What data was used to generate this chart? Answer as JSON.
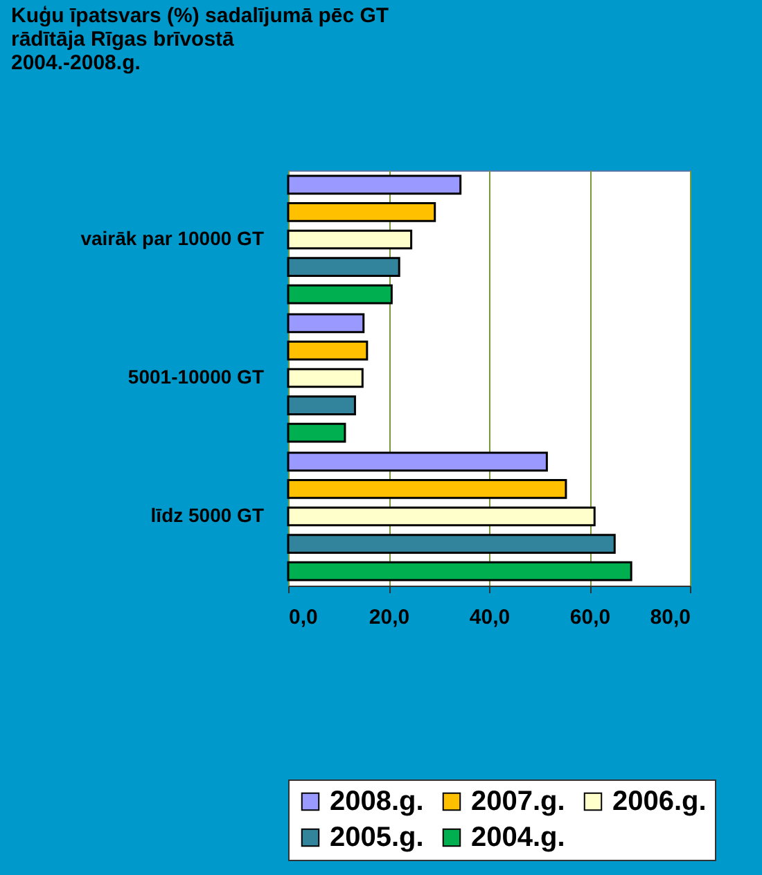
{
  "chart_data": {
    "type": "bar",
    "orientation": "horizontal",
    "title": "Kuģu īpatsvars (%) sadalījumā pēc GT\nrādītāja Rīgas brīvostā\n2004.-2008.g.",
    "categories": [
      "vairāk par 10000 GT",
      "5001-10000 GT",
      "līdz 5000 GT"
    ],
    "series": [
      {
        "name": "2008.g.",
        "color": "#9999ff",
        "values": [
          34.3,
          15.0,
          51.5
        ]
      },
      {
        "name": "2007.g.",
        "color": "#ffc000",
        "values": [
          29.2,
          15.7,
          55.3
        ]
      },
      {
        "name": "2006.g.",
        "color": "#ffffcc",
        "values": [
          24.5,
          14.8,
          61.0
        ]
      },
      {
        "name": "2005.g.",
        "color": "#31849b",
        "values": [
          22.1,
          13.3,
          65.0
        ]
      },
      {
        "name": "2004.g.",
        "color": "#00b050",
        "values": [
          20.6,
          11.3,
          68.3
        ]
      }
    ],
    "xlim": [
      0,
      80
    ],
    "xticks": [
      {
        "value": 0,
        "label": "0,0"
      },
      {
        "value": 20,
        "label": "20,0"
      },
      {
        "value": 40,
        "label": "40,0"
      },
      {
        "value": 60,
        "label": "60,0"
      },
      {
        "value": 80,
        "label": "80,0"
      }
    ],
    "grid": "x",
    "legend": "bottom"
  }
}
